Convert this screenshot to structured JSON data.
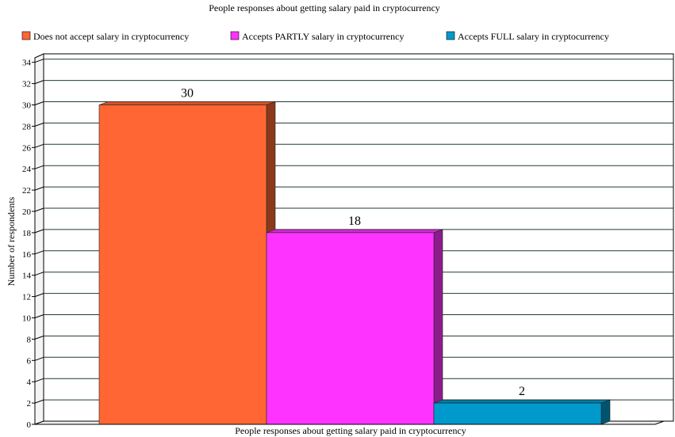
{
  "chart_data": {
    "type": "bar",
    "title": "People responses about getting salary paid in cryptocurrency",
    "xlabel": "People responses about getting salary paid in cryptocurrency",
    "ylabel": "Number of respondents",
    "ylim": [
      0,
      34
    ],
    "y_ticks": [
      0,
      2,
      4,
      6,
      8,
      10,
      12,
      14,
      16,
      18,
      20,
      22,
      24,
      26,
      28,
      30,
      32,
      34
    ],
    "grid": true,
    "legend_position": "top",
    "series": [
      {
        "name": "Does not accept salary in cryptocurrency",
        "value": 30,
        "label": "30",
        "color": "#ff6633"
      },
      {
        "name": "Accepts PARTLY salary in cryptocurrency",
        "value": 18,
        "label": "18",
        "color": "#ff33ff"
      },
      {
        "name": "Accepts FULL salary in cryptocurrency",
        "value": 2,
        "label": "2",
        "color": "#0099cc"
      }
    ]
  }
}
